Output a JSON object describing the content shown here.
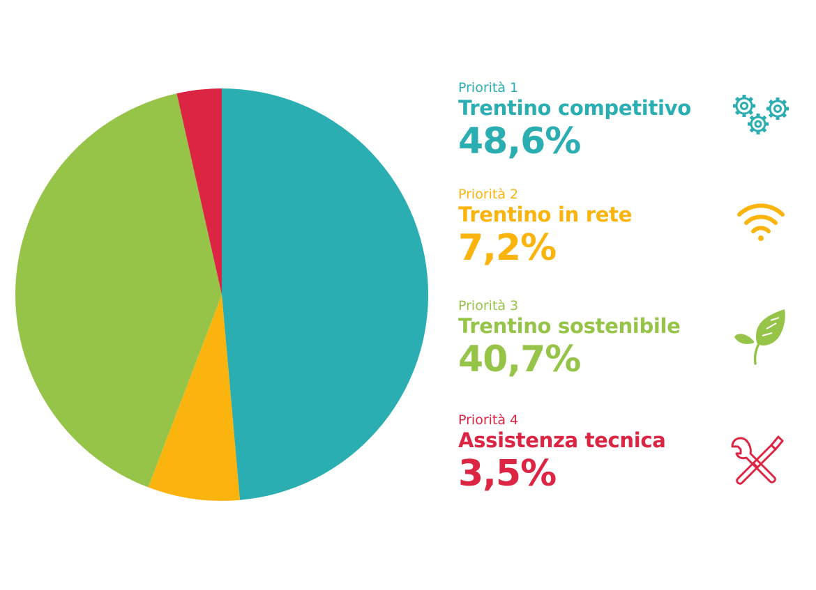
{
  "chart_data": {
    "type": "pie",
    "start_angle_deg": 0,
    "direction": "clockwise",
    "slices": [
      {
        "label": "Priorità 1",
        "name": "Trentino competitivo",
        "value": 48.6,
        "value_text": "48,6%",
        "color": "#2AAEB1",
        "icon": "gears-icon"
      },
      {
        "label": "Priorità 2",
        "name": "Trentino in rete",
        "value": 7.2,
        "value_text": "7,2%",
        "color": "#FBB40E",
        "icon": "wifi-icon"
      },
      {
        "label": "Priorità 3",
        "name": "Trentino sostenibile",
        "value": 40.7,
        "value_text": "40,7%",
        "color": "#96C448",
        "icon": "leaf-icon"
      },
      {
        "label": "Priorità 4",
        "name": "Assistenza tecnica",
        "value": 3.5,
        "value_text": "3,5%",
        "color": "#DC2443",
        "icon": "tools-icon"
      }
    ]
  }
}
